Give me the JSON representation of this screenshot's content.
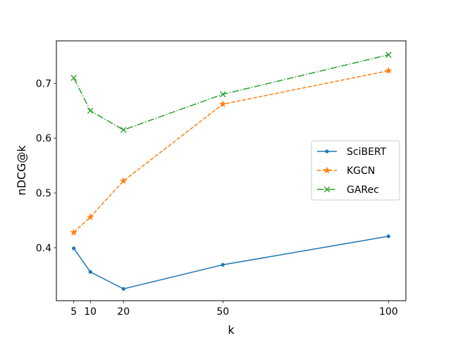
{
  "chart_data": {
    "type": "line",
    "xlabel": "k",
    "ylabel": "nDCG@k",
    "x": [
      5,
      10,
      20,
      50,
      100
    ],
    "xlim": [
      -0.25,
      105.25
    ],
    "ylim": [
      0.3035,
      0.7775
    ],
    "xticks": [
      5,
      10,
      20,
      50,
      100
    ],
    "yticks": [
      0.4,
      0.5,
      0.6,
      0.7
    ],
    "ytick_labels": [
      "0.4",
      "0.5",
      "0.6",
      "0.7"
    ],
    "grid": false,
    "legend_position": "center-right",
    "series": [
      {
        "name": "SciBERT",
        "values": [
          0.399,
          0.356,
          0.325,
          0.369,
          0.421
        ],
        "color": "#1f77b4",
        "marker": "dot",
        "linestyle": "solid"
      },
      {
        "name": "KGCN",
        "values": [
          0.428,
          0.456,
          0.522,
          0.662,
          0.723
        ],
        "color": "#ff7f0e",
        "marker": "star",
        "linestyle": "dashed"
      },
      {
        "name": "GARec",
        "values": [
          0.71,
          0.65,
          0.615,
          0.68,
          0.752
        ],
        "color": "#2ca02c",
        "marker": "x",
        "linestyle": "dashdot"
      }
    ]
  }
}
